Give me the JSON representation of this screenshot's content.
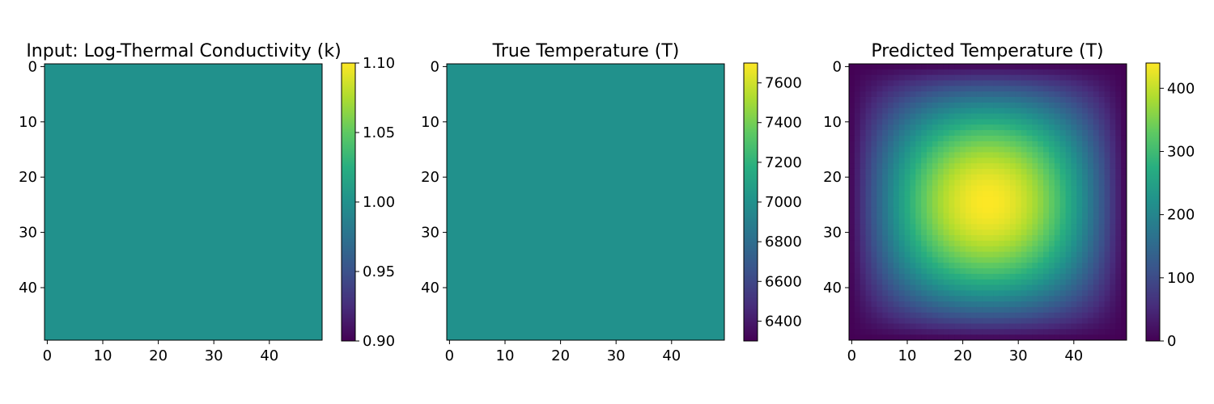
{
  "chart_data": [
    {
      "type": "heatmap",
      "title": "Input: Log-Thermal Conductivity (k)",
      "grid_size": [
        50,
        50
      ],
      "field": "uniform",
      "value": 1.0,
      "x_ticks": [
        "0",
        "10",
        "20",
        "30",
        "40"
      ],
      "y_ticks": [
        "0",
        "10",
        "20",
        "30",
        "40"
      ],
      "colormap": "viridis",
      "colorbar": {
        "min": 0.9,
        "max": 1.1,
        "ticks": [
          0.9,
          0.95,
          1.0,
          1.05,
          1.1
        ],
        "tick_labels": [
          "0.90",
          "0.95",
          "1.00",
          "1.05",
          "1.10"
        ]
      }
    },
    {
      "type": "heatmap",
      "title": "True Temperature (T)",
      "grid_size": [
        50,
        50
      ],
      "field": "uniform",
      "value": 7000,
      "x_ticks": [
        "0",
        "10",
        "20",
        "30",
        "40"
      ],
      "y_ticks": [
        "0",
        "10",
        "20",
        "30",
        "40"
      ],
      "colormap": "viridis",
      "colorbar": {
        "min": 6300,
        "max": 7700,
        "ticks": [
          6400,
          6600,
          6800,
          7000,
          7200,
          7400,
          7600
        ],
        "tick_labels": [
          "6400",
          "6600",
          "6800",
          "7000",
          "7200",
          "7400",
          "7600"
        ]
      }
    },
    {
      "type": "heatmap",
      "title": "Predicted Temperature (T)",
      "grid_size": [
        50,
        50
      ],
      "field": "sine_bump",
      "peak_value": 440,
      "peak_cell": [
        24.5,
        24.5
      ],
      "x_ticks": [
        "0",
        "10",
        "20",
        "30",
        "40"
      ],
      "y_ticks": [
        "0",
        "10",
        "20",
        "30",
        "40"
      ],
      "colormap": "viridis",
      "colorbar": {
        "min": 0,
        "max": 440,
        "ticks": [
          0,
          100,
          200,
          300,
          400
        ],
        "tick_labels": [
          "0",
          "100",
          "200",
          "300",
          "400"
        ]
      }
    }
  ]
}
